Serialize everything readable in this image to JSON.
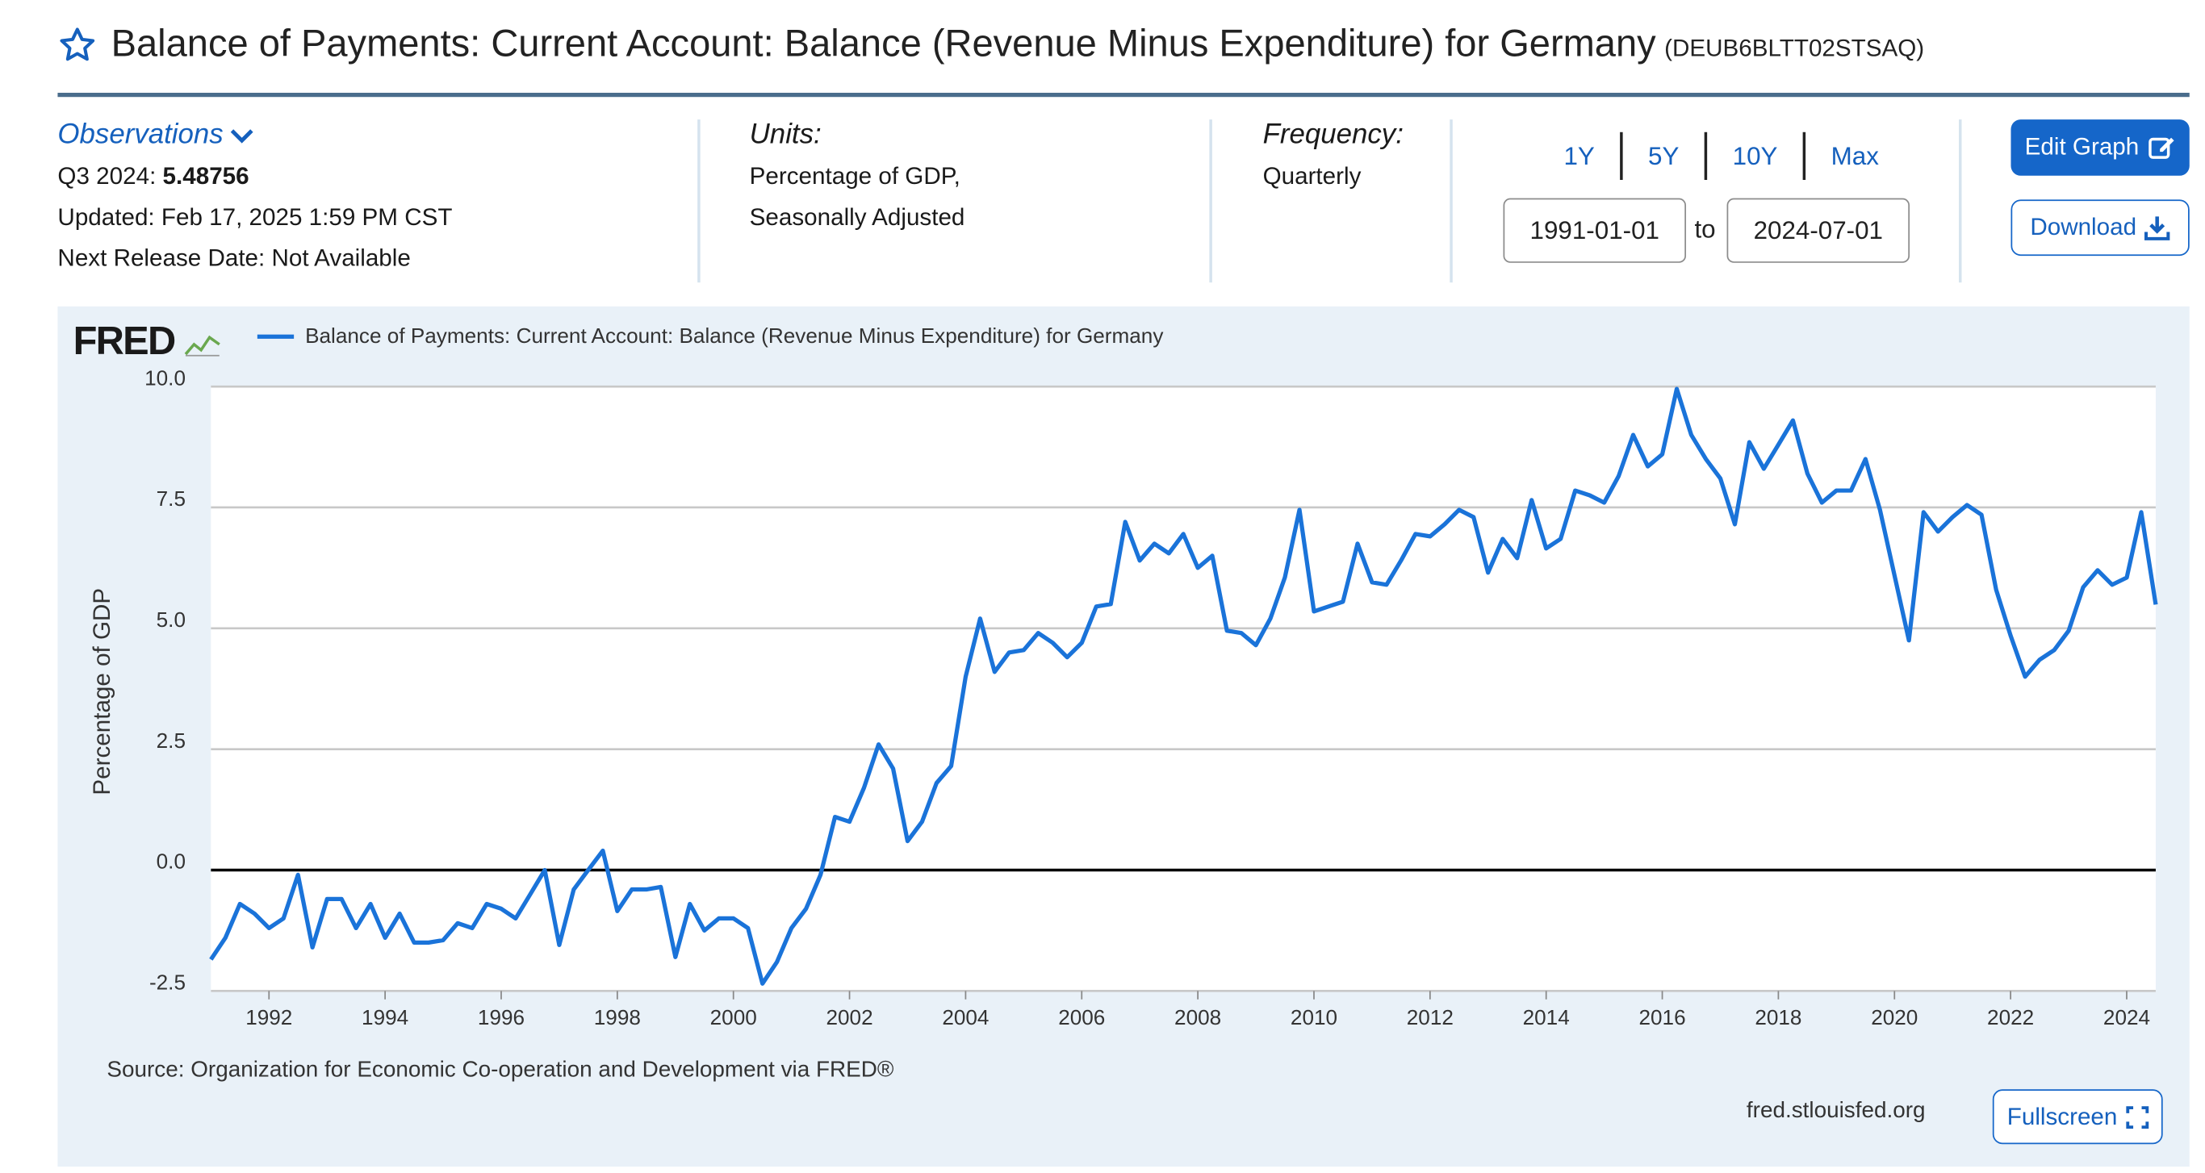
{
  "header": {
    "title": "Balance of Payments: Current Account: Balance (Revenue Minus Expenditure) for Germany",
    "series_id": "(DEUB6BLTT02STSAQ)"
  },
  "observations": {
    "link_label": "Observations",
    "period_label": "Q3 2024:",
    "value": "5.48756",
    "updated": "Updated: Feb 17, 2025 1:59 PM CST",
    "next_release": "Next Release Date: Not Available"
  },
  "units": {
    "label": "Units:",
    "line1": "Percentage of GDP,",
    "line2": "Seasonally Adjusted"
  },
  "frequency": {
    "label": "Frequency:",
    "value": "Quarterly"
  },
  "range": {
    "buttons": [
      "1Y",
      "5Y",
      "10Y",
      "Max"
    ],
    "start": "1991-01-01",
    "to_label": "to",
    "end": "2024-07-01"
  },
  "actions": {
    "edit_label": "Edit Graph",
    "download_label": "Download",
    "fullscreen_label": "Fullscreen"
  },
  "graph": {
    "logo": "FRED",
    "source": "Source: Organization for Economic Co-operation and Development via FRED®",
    "url": "fred.stlouisfed.org"
  },
  "colors": {
    "series": "#1a73d9",
    "accent": "#1566c9",
    "panel": "#e9f1f8"
  },
  "chart_data": {
    "type": "line",
    "title": "",
    "legend": "Balance of Payments: Current Account: Balance (Revenue Minus Expenditure) for Germany",
    "ylabel": "Percentage of GDP",
    "xlabel": "",
    "ylim": [
      -2.5,
      10.0
    ],
    "yticks": [
      "10.0",
      "7.5",
      "5.0",
      "2.5",
      "0.0",
      "-2.5"
    ],
    "xticks": [
      "1992",
      "1994",
      "1996",
      "1998",
      "2000",
      "2002",
      "2004",
      "2006",
      "2008",
      "2010",
      "2012",
      "2014",
      "2016",
      "2018",
      "2020",
      "2022",
      "2024"
    ],
    "x_start": 1991.0,
    "x_end": 2024.5,
    "x_step": 0.25,
    "series": [
      {
        "name": "Balance of Payments: Current Account: Balance (Revenue Minus Expenditure) for Germany",
        "values": [
          -1.85,
          -1.4,
          -0.7,
          -0.9,
          -1.2,
          -1.0,
          -0.1,
          -1.6,
          -0.6,
          -0.6,
          -1.2,
          -0.7,
          -1.4,
          -0.9,
          -1.5,
          -1.5,
          -1.45,
          -1.1,
          -1.2,
          -0.7,
          -0.8,
          -1.0,
          -0.5,
          0.0,
          -1.55,
          -0.4,
          0.0,
          0.4,
          -0.85,
          -0.4,
          -0.4,
          -0.35,
          -1.8,
          -0.7,
          -1.25,
          -1.0,
          -1.0,
          -1.2,
          -2.35,
          -1.9,
          -1.2,
          -0.8,
          -0.1,
          1.1,
          1.0,
          1.7,
          2.6,
          2.1,
          0.6,
          1.0,
          1.8,
          2.15,
          4.0,
          5.2,
          4.1,
          4.5,
          4.55,
          4.9,
          4.7,
          4.4,
          4.7,
          5.45,
          5.5,
          7.2,
          6.4,
          6.75,
          6.55,
          6.95,
          6.25,
          6.5,
          4.95,
          4.9,
          4.65,
          5.2,
          6.05,
          7.45,
          5.35,
          5.45,
          5.55,
          6.75,
          5.95,
          5.9,
          6.4,
          6.95,
          6.9,
          7.15,
          7.45,
          7.3,
          6.15,
          6.85,
          6.45,
          7.65,
          6.65,
          6.85,
          7.85,
          7.75,
          7.6,
          8.15,
          9.0,
          8.35,
          8.6,
          9.95,
          9.0,
          8.5,
          8.1,
          7.15,
          8.85,
          8.3,
          8.8,
          9.3,
          8.2,
          7.6,
          7.85,
          7.85,
          8.5,
          7.45,
          6.1,
          4.75,
          7.4,
          7.0,
          7.3,
          7.55,
          7.35,
          5.8,
          4.85,
          4.0,
          4.35,
          4.55,
          4.95,
          5.85,
          6.2,
          5.9,
          6.05,
          7.4,
          5.49
        ]
      }
    ]
  }
}
